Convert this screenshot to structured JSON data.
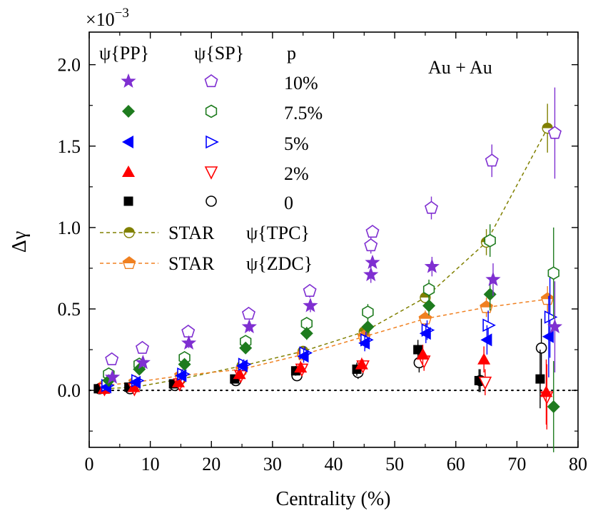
{
  "chart_data": {
    "type": "scatter",
    "title": "",
    "annotation": "Au + Au",
    "xlabel": "Centrality (%)",
    "ylabel": "Δγ",
    "y_scale_label": "×10",
    "y_scale_exponent": "−3",
    "xlim": [
      0,
      80
    ],
    "ylim": [
      -0.35,
      2.2
    ],
    "xticks": [
      "0",
      "10",
      "20",
      "30",
      "40",
      "50",
      "60",
      "70",
      "80"
    ],
    "yticks": [
      "0.0",
      "0.5",
      "1.0",
      "1.5",
      "2.0"
    ],
    "legend_headers": [
      "ψ{PP}",
      "ψ{SP}",
      "p"
    ],
    "series": [
      {
        "name": "ψ{PP} 10%",
        "marker": "star",
        "color": "#7f2fd1",
        "x": [
          3.8,
          8.8,
          16.3,
          26.2,
          36.2,
          46.1,
          56.1,
          66.1,
          76.2
        ],
        "y": [
          0.08,
          0.17,
          0.29,
          0.39,
          0.52,
          0.71,
          0.76,
          0.68,
          0.39
        ],
        "err": [
          0.02,
          0.02,
          0.03,
          0.03,
          0.04,
          0.05,
          0.06,
          0.1,
          0.28
        ]
      },
      {
        "name": "ψ{SP} 10%",
        "marker": "pentagon-open",
        "color": "#7f2fd1",
        "x": [
          3.7,
          8.7,
          16.2,
          26.1,
          36.1,
          46.1,
          56.0,
          65.9,
          76.2
        ],
        "y": [
          0.19,
          0.26,
          0.36,
          0.47,
          0.61,
          0.89,
          1.12,
          1.41,
          1.58
        ],
        "err": [
          0.02,
          0.02,
          0.03,
          0.03,
          0.04,
          0.05,
          0.07,
          0.1,
          0.28
        ]
      },
      {
        "name": "ψ{PP} 7.5%",
        "marker": "diamond",
        "color": "#1e7b1e",
        "x": [
          3.2,
          8.2,
          15.6,
          25.6,
          35.6,
          45.6,
          55.6,
          65.6,
          76.0
        ],
        "y": [
          0.06,
          0.13,
          0.16,
          0.26,
          0.35,
          0.39,
          0.52,
          0.59,
          -0.1
        ],
        "err": [
          0.02,
          0.02,
          0.03,
          0.03,
          0.04,
          0.05,
          0.06,
          0.1,
          0.28
        ]
      },
      {
        "name": "ψ{SP} 7.5%",
        "marker": "hexagon-open",
        "color": "#1e7b1e",
        "x": [
          3.2,
          8.2,
          15.6,
          25.6,
          35.6,
          45.6,
          55.6,
          65.6,
          76.0
        ],
        "y": [
          0.1,
          0.16,
          0.2,
          0.3,
          0.41,
          0.48,
          0.62,
          0.92,
          0.72
        ],
        "err": [
          0.02,
          0.02,
          0.03,
          0.03,
          0.04,
          0.05,
          0.06,
          0.1,
          0.28
        ]
      },
      {
        "name": "ψ{PP} 5%",
        "marker": "tri-left",
        "color": "#0000ff",
        "x": [
          2.8,
          7.6,
          15.1,
          25.1,
          35.1,
          45.1,
          55.1,
          65.1,
          75.2
        ],
        "y": [
          0.02,
          0.05,
          0.09,
          0.15,
          0.21,
          0.29,
          0.35,
          0.31,
          0.33
        ],
        "err": [
          0.02,
          0.02,
          0.03,
          0.03,
          0.04,
          0.05,
          0.06,
          0.09,
          0.25
        ]
      },
      {
        "name": "ψ{SP} 5%",
        "marker": "tri-right-open",
        "color": "#0000ff",
        "x": [
          2.9,
          7.8,
          15.3,
          25.3,
          35.3,
          45.3,
          55.3,
          65.3,
          75.4
        ],
        "y": [
          0.03,
          0.06,
          0.1,
          0.16,
          0.23,
          0.31,
          0.37,
          0.4,
          0.45
        ],
        "err": [
          0.02,
          0.02,
          0.03,
          0.03,
          0.04,
          0.05,
          0.06,
          0.09,
          0.25
        ]
      },
      {
        "name": "ψ{PP} 2%",
        "marker": "tri-up",
        "color": "#ff0000",
        "x": [
          2.4,
          7.3,
          14.6,
          24.6,
          34.6,
          44.6,
          54.6,
          64.6,
          74.8
        ],
        "y": [
          0.01,
          0.02,
          0.05,
          0.1,
          0.14,
          0.16,
          0.22,
          0.19,
          -0.01
        ],
        "err": [
          0.02,
          0.02,
          0.03,
          0.03,
          0.04,
          0.04,
          0.06,
          0.08,
          0.2
        ]
      },
      {
        "name": "ψ{SP} 2%",
        "marker": "tri-down-open",
        "color": "#ff0000",
        "x": [
          2.5,
          7.4,
          14.8,
          24.8,
          34.8,
          44.8,
          54.8,
          64.8,
          74.9
        ],
        "y": [
          0.01,
          0.01,
          0.04,
          0.09,
          0.13,
          0.15,
          0.18,
          0.05,
          -0.04
        ],
        "err": [
          0.02,
          0.02,
          0.03,
          0.03,
          0.04,
          0.04,
          0.06,
          0.08,
          0.2
        ]
      },
      {
        "name": "ψ{PP} 0",
        "marker": "square",
        "color": "#000000",
        "x": [
          1.5,
          6.5,
          13.8,
          23.8,
          33.8,
          43.8,
          53.8,
          63.8,
          73.8
        ],
        "y": [
          0.01,
          0.02,
          0.04,
          0.07,
          0.12,
          0.13,
          0.25,
          0.06,
          0.07
        ],
        "err": [
          0.01,
          0.01,
          0.02,
          0.02,
          0.03,
          0.04,
          0.06,
          0.07,
          0.18
        ]
      },
      {
        "name": "ψ{SP} 0",
        "marker": "circle-open",
        "color": "#000000",
        "x": [
          1.7,
          6.7,
          14.0,
          24.0,
          34.0,
          44.0,
          54.0,
          64.0,
          74.0
        ],
        "y": [
          0.01,
          0.01,
          0.03,
          0.06,
          0.09,
          0.11,
          0.17,
          0.06,
          0.26
        ],
        "err": [
          0.01,
          0.01,
          0.02,
          0.02,
          0.03,
          0.04,
          0.06,
          0.07,
          0.18
        ]
      },
      {
        "name": "STAR ψ{TPC}",
        "marker": "circle-half",
        "color": "#808000",
        "line": "dashed",
        "x": [
          2.5,
          7.5,
          15,
          25,
          35,
          45,
          55,
          65,
          75
        ],
        "y": [
          0.01,
          0.02,
          0.07,
          0.15,
          0.24,
          0.36,
          0.57,
          0.91,
          1.61
        ],
        "err": [
          0.01,
          0.01,
          0.02,
          0.02,
          0.03,
          0.04,
          0.05,
          0.08,
          0.15
        ]
      },
      {
        "name": "STAR ψ{ZDC}",
        "marker": "pentagon-half",
        "color": "#f08020",
        "line": "dashed",
        "x": [
          2.5,
          7.5,
          15,
          25,
          35,
          45,
          55,
          65,
          75
        ],
        "y": [
          0.03,
          0.05,
          0.09,
          0.13,
          0.22,
          0.33,
          0.44,
          0.51,
          0.56
        ],
        "err": [
          0.01,
          0.01,
          0.02,
          0.02,
          0.03,
          0.04,
          0.05,
          0.06,
          0.08
        ]
      }
    ],
    "legend": {
      "position": "top-left",
      "rows": [
        {
          "label": "10%",
          "pp_series": 0,
          "sp_series": 1
        },
        {
          "label": "7.5%",
          "pp_series": 2,
          "sp_series": 3
        },
        {
          "label": "5%",
          "pp_series": 4,
          "sp_series": 5
        },
        {
          "label": "2%",
          "pp_series": 6,
          "sp_series": 7
        },
        {
          "label": "0",
          "pp_series": 8,
          "sp_series": 9
        }
      ],
      "star_rows": [
        {
          "label_a": "STAR",
          "label_b": "ψ{TPC}",
          "line_series": 10,
          "extra_marker_series": 1
        },
        {
          "label_a": "STAR",
          "label_b": "ψ{ZDC}",
          "line_series": 11,
          "extra_marker_series": 0
        }
      ]
    },
    "zero_line": true,
    "grid": false
  }
}
